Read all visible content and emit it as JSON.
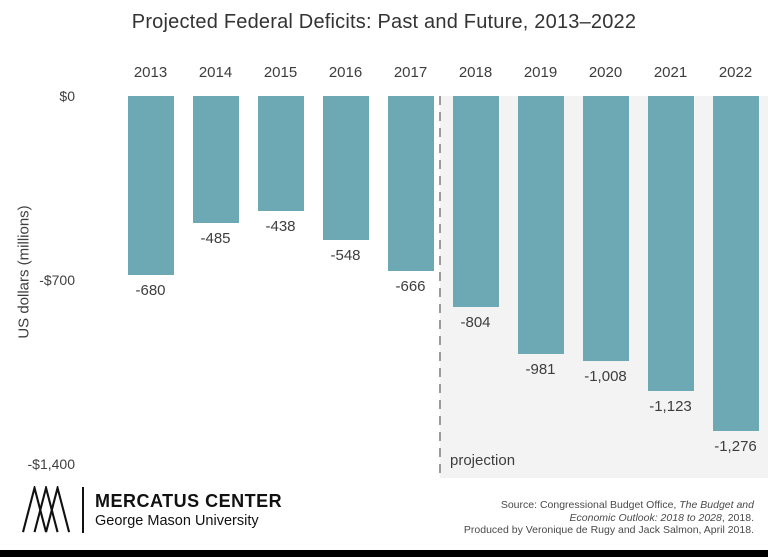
{
  "title": "Projected Federal Deficits: Past and Future, 2013–2022",
  "ylabel": "US dollars (millions)",
  "projection_label": "projection",
  "colors": {
    "bar": "#6CA9B5",
    "projection_bg": "#F3F3F3",
    "dashed_line": "#9B9B9B"
  },
  "chart_data": {
    "type": "bar",
    "title": "Projected Federal Deficits: Past and Future, 2013–2022",
    "xlabel": "",
    "ylabel": "US dollars (millions)",
    "categories": [
      "2013",
      "2014",
      "2015",
      "2016",
      "2017",
      "2018",
      "2019",
      "2020",
      "2021",
      "2022"
    ],
    "values": [
      -680,
      -485,
      -438,
      -548,
      -666,
      -804,
      -981,
      -1008,
      -1123,
      -1276
    ],
    "value_labels": [
      "-680",
      "-485",
      "-438",
      "-548",
      "-666",
      "-804",
      "-981",
      "-1,008",
      "-1,123",
      "-1,276"
    ],
    "ylim": [
      -1400,
      0
    ],
    "yticks": [
      {
        "label": "$0",
        "value": 0
      },
      {
        "label": "-$700",
        "value": -700
      },
      {
        "label": "-$1,400",
        "value": -1400
      }
    ],
    "grid": false,
    "legend": false,
    "projection_start_category": "2018",
    "annotation": "projection"
  },
  "footer": {
    "logo_title": "MERCATUS CENTER",
    "logo_subtitle": "George Mason University",
    "source": {
      "line1_normal": "Source: Congressional Budget Office, ",
      "line1_italic": "The Budget and",
      "line2_italic": "Economic Outlook: 2018 to 2028",
      "line2_normal": ", 2018.",
      "line3": "Produced by Veronique de Rugy and Jack Salmon, April 2018."
    }
  }
}
